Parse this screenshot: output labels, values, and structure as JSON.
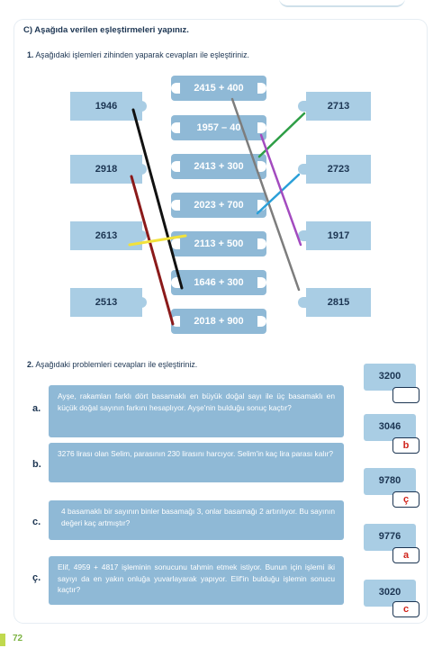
{
  "section_title": "C)  Aşağıda verilen eşleştirmeleri yapınız.",
  "q1": {
    "number": "1.",
    "text": "Aşağıdaki işlemleri zihinden yaparak cevapları ile eşleştiriniz."
  },
  "left_results": [
    "1946",
    "2918",
    "2613",
    "2513"
  ],
  "center_ops": [
    "2415 + 400",
    "1957 – 40",
    "2413 + 300",
    "2023 + 700",
    "2113 + 500",
    "1646 + 300",
    "2018 + 900"
  ],
  "right_results": [
    "2713",
    "2723",
    "1917",
    "2815"
  ],
  "match_lines": [
    {
      "color": "#111111"
    },
    {
      "color": "#8b1a1a"
    },
    {
      "color": "#f2e23b"
    },
    {
      "color": "#7d7d7d"
    },
    {
      "color": "#2e9e46"
    },
    {
      "color": "#2a9fd8"
    },
    {
      "color": "#a34bbf"
    }
  ],
  "q2": {
    "number": "2.",
    "text": "Aşağıdaki problemleri cevapları ile eşleştiriniz."
  },
  "problems": [
    {
      "letter": "a.",
      "text": "Ayşe, rakamları farklı dört basamaklı en büyük doğal sayı ile üç basamaklı en küçük doğal sayının farkını hesaplıyor. Ayşe'nin bulduğu sonuç kaçtır?"
    },
    {
      "letter": "b.",
      "text": "3276 lirası olan Selim, parasının 230 lirasını harcıyor. Selim'in kaç lira parası kalır?"
    },
    {
      "letter": "c.",
      "text": "4 basamaklı bir sayının binler basamağı 3, onlar basamağı 2 artırılıyor. Bu sayının değeri kaç artmıştır?"
    },
    {
      "letter": "ç.",
      "text": "Elif, 4959 + 4817 işleminin sonucunu tahmin etmek istiyor. Bunun için işlemi iki sayıyı da en yakın onluğa yuvarlayarak yapıyor. Elif'in bulduğu işlemin sonucu kaçtır?"
    }
  ],
  "answers": [
    {
      "value": "3200",
      "mark": ""
    },
    {
      "value": "3046",
      "mark": "b"
    },
    {
      "value": "9780",
      "mark": "ç"
    },
    {
      "value": "9776",
      "mark": "a"
    },
    {
      "value": "3020",
      "mark": "c"
    }
  ],
  "page_number": "72"
}
